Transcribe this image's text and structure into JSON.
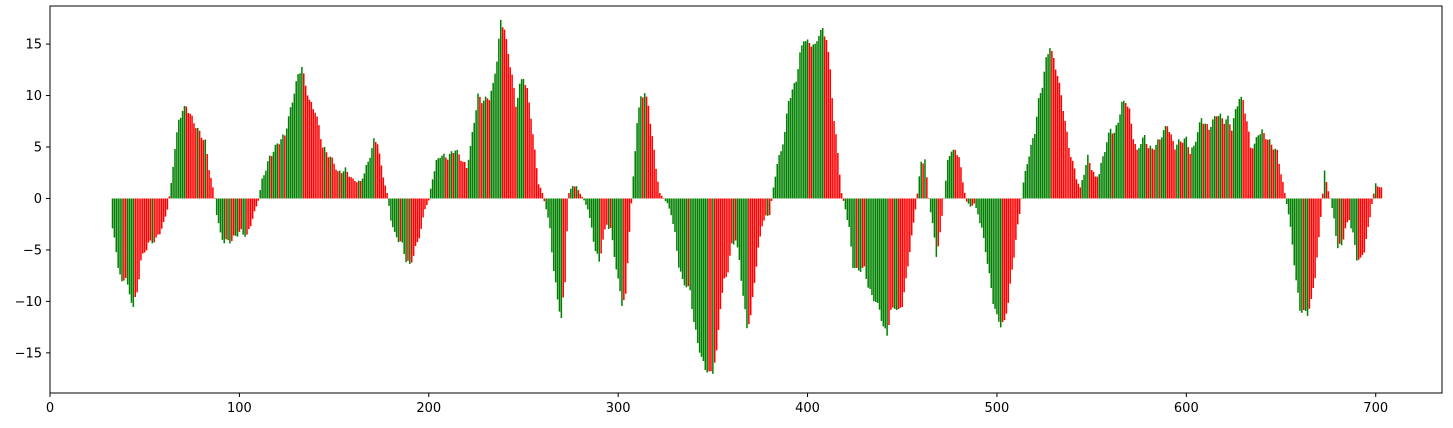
{
  "chart_data": {
    "type": "bar",
    "title": "",
    "xlabel": "",
    "ylabel": "",
    "xlim": [
      0,
      735
    ],
    "ylim": [
      -18.9,
      18.7
    ],
    "xticks": [
      0,
      100,
      200,
      300,
      400,
      500,
      600,
      700
    ],
    "yticks": [
      -15,
      -10,
      -5,
      0,
      5,
      10,
      15
    ],
    "grid": false,
    "legend": "none",
    "colors": {
      "up": "#008000",
      "down": "#ff0000"
    },
    "x_start": 33,
    "x_end": 703,
    "keypoints": [
      [
        33,
        -2.8
      ],
      [
        36,
        -6.5
      ],
      [
        38,
        -8.3
      ],
      [
        40,
        -7.5
      ],
      [
        42,
        -9.5
      ],
      [
        44,
        -10.4
      ],
      [
        46,
        -9.2
      ],
      [
        48,
        -6.0
      ],
      [
        52,
        -4.4
      ],
      [
        56,
        -4.0
      ],
      [
        60,
        -2.5
      ],
      [
        62,
        -1.0
      ],
      [
        64,
        1.4
      ],
      [
        66,
        5.0
      ],
      [
        68,
        7.5
      ],
      [
        70,
        8.6
      ],
      [
        72,
        8.9
      ],
      [
        74,
        8.2
      ],
      [
        76,
        7.4
      ],
      [
        78,
        6.7
      ],
      [
        82,
        5.5
      ],
      [
        84,
        3.0
      ],
      [
        86,
        1.0
      ],
      [
        87,
        0.0
      ],
      [
        88,
        -1.5
      ],
      [
        90,
        -3.5
      ],
      [
        92,
        -4.2
      ],
      [
        96,
        -4.1
      ],
      [
        98,
        -3.6
      ],
      [
        101,
        -3.2
      ],
      [
        104,
        -3.7
      ],
      [
        106,
        -2.5
      ],
      [
        110,
        -0.2
      ],
      [
        112,
        1.8
      ],
      [
        116,
        4.0
      ],
      [
        120,
        5.3
      ],
      [
        124,
        6.2
      ],
      [
        128,
        9.5
      ],
      [
        131,
        12.0
      ],
      [
        133,
        12.8
      ],
      [
        135,
        11.0
      ],
      [
        137,
        9.5
      ],
      [
        140,
        8.5
      ],
      [
        142,
        7.0
      ],
      [
        144,
        5.0
      ],
      [
        146,
        4.5
      ],
      [
        150,
        3.5
      ],
      [
        152,
        2.5
      ],
      [
        156,
        2.8
      ],
      [
        160,
        1.8
      ],
      [
        164,
        1.6
      ],
      [
        168,
        3.5
      ],
      [
        171,
        5.6
      ],
      [
        173,
        5.5
      ],
      [
        175,
        3.0
      ],
      [
        178,
        0.5
      ],
      [
        180,
        -2.0
      ],
      [
        182,
        -3.5
      ],
      [
        186,
        -4.5
      ],
      [
        188,
        -6.0
      ],
      [
        190,
        -6.5
      ],
      [
        192,
        -5.5
      ],
      [
        196,
        -3.0
      ],
      [
        198,
        -1.0
      ],
      [
        200,
        -0.2
      ],
      [
        202,
        2.0
      ],
      [
        204,
        3.5
      ],
      [
        206,
        4.2
      ],
      [
        210,
        4.0
      ],
      [
        214,
        4.8
      ],
      [
        216,
        4.2
      ],
      [
        220,
        3.0
      ],
      [
        222,
        5.0
      ],
      [
        226,
        10.0
      ],
      [
        228,
        9.5
      ],
      [
        232,
        9.8
      ],
      [
        234,
        11.0
      ],
      [
        236,
        13.5
      ],
      [
        238,
        17.2
      ],
      [
        240,
        16.5
      ],
      [
        242,
        14.0
      ],
      [
        244,
        12.0
      ],
      [
        246,
        9.0
      ],
      [
        248,
        11.0
      ],
      [
        250,
        11.8
      ],
      [
        252,
        10.5
      ],
      [
        254,
        8.0
      ],
      [
        256,
        4.5
      ],
      [
        258,
        1.5
      ],
      [
        260,
        0.5
      ],
      [
        262,
        -1.0
      ],
      [
        264,
        -3.0
      ],
      [
        266,
        -7.0
      ],
      [
        268,
        -9.8
      ],
      [
        270,
        -11.7
      ],
      [
        272,
        -8.0
      ],
      [
        273,
        -3.0
      ],
      [
        274,
        0.5
      ],
      [
        276,
        1.3
      ],
      [
        278,
        1.1
      ],
      [
        280,
        0.5
      ],
      [
        282,
        -0.2
      ],
      [
        284,
        -1.0
      ],
      [
        286,
        -3.0
      ],
      [
        288,
        -5.0
      ],
      [
        290,
        -6.2
      ],
      [
        292,
        -4.0
      ],
      [
        294,
        -2.5
      ],
      [
        296,
        -3.0
      ],
      [
        298,
        -5.5
      ],
      [
        300,
        -8.0
      ],
      [
        302,
        -10.2
      ],
      [
        304,
        -9.5
      ],
      [
        306,
        -3.0
      ],
      [
        308,
        2.0
      ],
      [
        310,
        7.5
      ],
      [
        312,
        9.8
      ],
      [
        314,
        10.3
      ],
      [
        316,
        9.0
      ],
      [
        318,
        6.0
      ],
      [
        320,
        3.0
      ],
      [
        322,
        0.5
      ],
      [
        324,
        0.0
      ],
      [
        326,
        -0.5
      ],
      [
        328,
        -1.5
      ],
      [
        330,
        -3.5
      ],
      [
        332,
        -6.5
      ],
      [
        334,
        -8.0
      ],
      [
        336,
        -8.5
      ],
      [
        338,
        -9.0
      ],
      [
        340,
        -12.0
      ],
      [
        342,
        -14.0
      ],
      [
        344,
        -15.5
      ],
      [
        346,
        -16.5
      ],
      [
        348,
        -17.0
      ],
      [
        350,
        -16.8
      ],
      [
        352,
        -15.0
      ],
      [
        354,
        -10.5
      ],
      [
        356,
        -8.0
      ],
      [
        358,
        -7.0
      ],
      [
        360,
        -4.5
      ],
      [
        362,
        -4.0
      ],
      [
        364,
        -6.0
      ],
      [
        366,
        -9.5
      ],
      [
        368,
        -12.5
      ],
      [
        370,
        -11.5
      ],
      [
        372,
        -8.0
      ],
      [
        374,
        -5.0
      ],
      [
        376,
        -2.5
      ],
      [
        378,
        -1.8
      ],
      [
        380,
        -1.5
      ],
      [
        382,
        1.0
      ],
      [
        384,
        3.5
      ],
      [
        386,
        4.5
      ],
      [
        388,
        6.5
      ],
      [
        390,
        9.5
      ],
      [
        392,
        10.5
      ],
      [
        394,
        11.5
      ],
      [
        396,
        14.0
      ],
      [
        398,
        15.5
      ],
      [
        400,
        15.2
      ],
      [
        402,
        15.0
      ],
      [
        404,
        14.8
      ],
      [
        406,
        16.0
      ],
      [
        408,
        16.4
      ],
      [
        410,
        15.5
      ],
      [
        412,
        12.5
      ],
      [
        414,
        7.5
      ],
      [
        416,
        4.5
      ],
      [
        418,
        0.5
      ],
      [
        420,
        -1.0
      ],
      [
        422,
        -3.0
      ],
      [
        424,
        -6.5
      ],
      [
        426,
        -7.0
      ],
      [
        430,
        -6.8
      ],
      [
        432,
        -8.5
      ],
      [
        434,
        -9.5
      ],
      [
        436,
        -10.0
      ],
      [
        438,
        -10.8
      ],
      [
        440,
        -12.5
      ],
      [
        442,
        -13.2
      ],
      [
        444,
        -11.0
      ],
      [
        446,
        -10.5
      ],
      [
        448,
        -11.0
      ],
      [
        450,
        -10.3
      ],
      [
        452,
        -8.0
      ],
      [
        454,
        -5.0
      ],
      [
        456,
        -2.5
      ],
      [
        458,
        0.5
      ],
      [
        460,
        3.5
      ],
      [
        462,
        3.8
      ],
      [
        464,
        0.0
      ],
      [
        466,
        -2.5
      ],
      [
        468,
        -5.5
      ],
      [
        470,
        -3.5
      ],
      [
        472,
        0.0
      ],
      [
        474,
        3.5
      ],
      [
        476,
        4.8
      ],
      [
        478,
        4.5
      ],
      [
        480,
        4.2
      ],
      [
        482,
        1.5
      ],
      [
        484,
        -0.3
      ],
      [
        486,
        -0.8
      ],
      [
        488,
        -0.5
      ],
      [
        490,
        -1.5
      ],
      [
        492,
        -3.0
      ],
      [
        494,
        -5.0
      ],
      [
        496,
        -7.5
      ],
      [
        498,
        -10.0
      ],
      [
        500,
        -11.5
      ],
      [
        502,
        -12.3
      ],
      [
        504,
        -12.0
      ],
      [
        506,
        -10.0
      ],
      [
        508,
        -7.0
      ],
      [
        510,
        -4.0
      ],
      [
        512,
        -1.5
      ],
      [
        514,
        1.5
      ],
      [
        516,
        3.5
      ],
      [
        518,
        5.0
      ],
      [
        520,
        6.5
      ],
      [
        522,
        9.5
      ],
      [
        524,
        11.0
      ],
      [
        526,
        13.5
      ],
      [
        528,
        14.8
      ],
      [
        530,
        13.5
      ],
      [
        532,
        12.0
      ],
      [
        534,
        10.0
      ],
      [
        536,
        7.5
      ],
      [
        538,
        5.0
      ],
      [
        540,
        3.5
      ],
      [
        542,
        2.0
      ],
      [
        544,
        1.0
      ],
      [
        546,
        2.5
      ],
      [
        548,
        4.0
      ],
      [
        550,
        3.0
      ],
      [
        552,
        2.0
      ],
      [
        554,
        2.5
      ],
      [
        556,
        4.0
      ],
      [
        558,
        5.5
      ],
      [
        560,
        6.8
      ],
      [
        562,
        6.3
      ],
      [
        564,
        7.5
      ],
      [
        566,
        9.2
      ],
      [
        568,
        9.5
      ],
      [
        570,
        8.5
      ],
      [
        572,
        6.0
      ],
      [
        574,
        4.5
      ],
      [
        576,
        5.5
      ],
      [
        578,
        6.0
      ],
      [
        580,
        5.0
      ],
      [
        582,
        4.8
      ],
      [
        584,
        5.2
      ],
      [
        586,
        5.8
      ],
      [
        588,
        6.5
      ],
      [
        590,
        7.2
      ],
      [
        592,
        6.0
      ],
      [
        594,
        5.0
      ],
      [
        596,
        5.5
      ],
      [
        600,
        5.8
      ],
      [
        602,
        4.5
      ],
      [
        604,
        5.0
      ],
      [
        606,
        6.5
      ],
      [
        608,
        7.8
      ],
      [
        610,
        7.2
      ],
      [
        612,
        6.8
      ],
      [
        614,
        7.5
      ],
      [
        616,
        8.2
      ],
      [
        618,
        8.0
      ],
      [
        620,
        7.5
      ],
      [
        622,
        7.8
      ],
      [
        624,
        6.8
      ],
      [
        626,
        8.5
      ],
      [
        628,
        9.8
      ],
      [
        630,
        9.5
      ],
      [
        632,
        7.5
      ],
      [
        634,
        5.0
      ],
      [
        636,
        5.2
      ],
      [
        638,
        6.3
      ],
      [
        640,
        6.5
      ],
      [
        642,
        6.0
      ],
      [
        644,
        5.5
      ],
      [
        646,
        5.0
      ],
      [
        648,
        4.5
      ],
      [
        650,
        2.5
      ],
      [
        652,
        0.5
      ],
      [
        654,
        -1.5
      ],
      [
        656,
        -4.5
      ],
      [
        658,
        -8.0
      ],
      [
        660,
        -10.8
      ],
      [
        662,
        -11.0
      ],
      [
        664,
        -11.2
      ],
      [
        666,
        -10.0
      ],
      [
        668,
        -7.5
      ],
      [
        670,
        -4.0
      ],
      [
        672,
        0.5
      ],
      [
        673,
        2.6
      ],
      [
        674,
        1.5
      ],
      [
        676,
        0.0
      ],
      [
        678,
        -2.0
      ],
      [
        680,
        -4.8
      ],
      [
        682,
        -4.5
      ],
      [
        684,
        -3.0
      ],
      [
        686,
        -2.0
      ],
      [
        688,
        -3.5
      ],
      [
        690,
        -5.8
      ],
      [
        692,
        -6.0
      ],
      [
        694,
        -5.0
      ],
      [
        696,
        -3.0
      ],
      [
        698,
        -0.5
      ],
      [
        700,
        1.4
      ],
      [
        703,
        1.0
      ]
    ]
  }
}
